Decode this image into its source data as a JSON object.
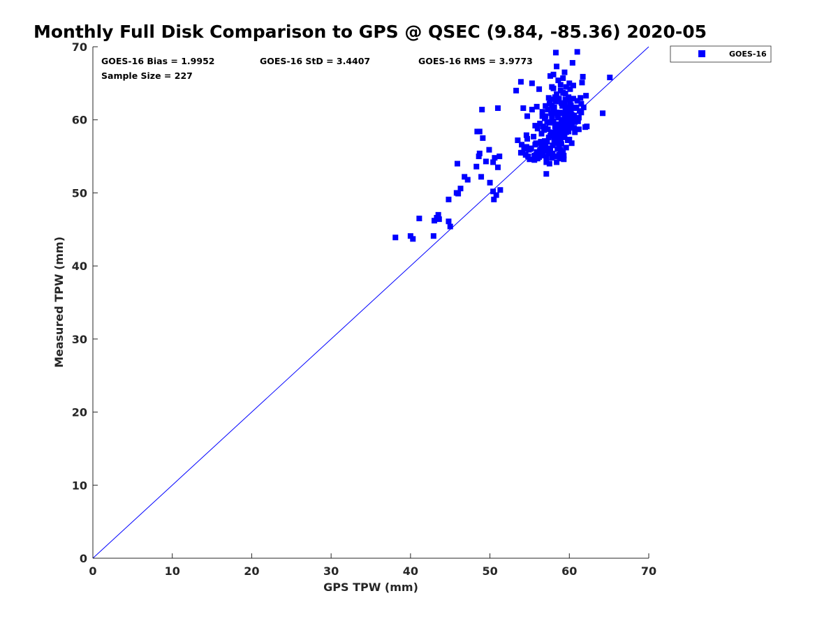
{
  "chart_data": {
    "type": "scatter",
    "title": "Monthly Full Disk Comparison to GPS @ QSEC (9.84, -85.36) 2020-05",
    "xlabel": "GPS TPW (mm)",
    "ylabel": "Measured TPW (mm)",
    "xlim": [
      0,
      70
    ],
    "ylim": [
      0,
      70
    ],
    "xticks": [
      "0",
      "10",
      "20",
      "30",
      "40",
      "50",
      "60",
      "70"
    ],
    "yticks": [
      "0",
      "10",
      "20",
      "30",
      "40",
      "50",
      "60",
      "70"
    ],
    "grid": false,
    "legend": {
      "placement": "outside-top-right"
    },
    "reference_line": {
      "kind": "one-to-one",
      "from": [
        0,
        0
      ],
      "to": [
        70,
        70
      ]
    },
    "stats": {
      "bias": "GOES-16 Bias = 1.9952",
      "std": "GOES-16 StD = 3.4407",
      "rms": "GOES-16 RMS = 3.9773",
      "sample": "Sample Size = 227"
    },
    "series": [
      {
        "name": "GOES-16",
        "color": "#0000ff",
        "marker": "square",
        "points": [
          [
            38.1,
            43.9
          ],
          [
            40.0,
            44.1
          ],
          [
            40.3,
            43.7
          ],
          [
            41.1,
            46.5
          ],
          [
            42.9,
            44.1
          ],
          [
            43.0,
            46.2
          ],
          [
            43.3,
            46.6
          ],
          [
            43.5,
            47.0
          ],
          [
            43.6,
            46.4
          ],
          [
            44.8,
            46.1
          ],
          [
            45.0,
            45.4
          ],
          [
            44.8,
            49.1
          ],
          [
            45.8,
            50.0
          ],
          [
            45.9,
            54.0
          ],
          [
            46.0,
            49.9
          ],
          [
            46.3,
            50.6
          ],
          [
            46.8,
            52.2
          ],
          [
            47.2,
            51.8
          ],
          [
            48.3,
            53.6
          ],
          [
            48.4,
            58.4
          ],
          [
            48.7,
            58.4
          ],
          [
            48.6,
            55.0
          ],
          [
            48.7,
            55.4
          ],
          [
            48.9,
            52.2
          ],
          [
            49.0,
            61.4
          ],
          [
            49.1,
            57.5
          ],
          [
            49.5,
            54.3
          ],
          [
            49.9,
            55.9
          ],
          [
            50.0,
            51.4
          ],
          [
            50.4,
            54.2
          ],
          [
            50.4,
            50.2
          ],
          [
            50.5,
            49.1
          ],
          [
            50.6,
            54.8
          ],
          [
            50.8,
            49.7
          ],
          [
            51.0,
            61.6
          ],
          [
            51.0,
            53.5
          ],
          [
            51.2,
            55.0
          ],
          [
            51.3,
            50.4
          ],
          [
            53.3,
            64.0
          ],
          [
            53.5,
            57.2
          ],
          [
            53.9,
            65.2
          ],
          [
            54.0,
            56.6
          ],
          [
            54.1,
            55.5
          ],
          [
            54.2,
            61.6
          ],
          [
            54.6,
            56.3
          ],
          [
            54.7,
            60.5
          ],
          [
            54.7,
            57.4
          ],
          [
            54.8,
            55.0
          ],
          [
            55.0,
            54.6
          ],
          [
            55.1,
            56.0
          ],
          [
            55.3,
            65.0
          ],
          [
            55.3,
            61.4
          ],
          [
            55.6,
            55.1
          ],
          [
            55.7,
            59.2
          ],
          [
            55.9,
            55.6
          ],
          [
            55.9,
            61.8
          ],
          [
            56.0,
            54.7
          ],
          [
            56.2,
            64.2
          ],
          [
            56.3,
            55.8
          ],
          [
            56.5,
            58.1
          ],
          [
            56.6,
            60.5
          ],
          [
            56.7,
            55.1
          ],
          [
            56.8,
            58.6
          ],
          [
            56.9,
            57.1
          ],
          [
            57.0,
            56.3
          ],
          [
            57.1,
            54.2
          ],
          [
            57.1,
            52.6
          ],
          [
            57.2,
            59.7
          ],
          [
            57.3,
            61.4
          ],
          [
            57.4,
            57.6
          ],
          [
            57.4,
            55.4
          ],
          [
            57.5,
            54.0
          ],
          [
            57.6,
            66.0
          ],
          [
            57.6,
            62.8
          ],
          [
            57.7,
            58.3
          ],
          [
            57.8,
            60.2
          ],
          [
            57.9,
            56.5
          ],
          [
            58.0,
            66.2
          ],
          [
            58.0,
            64.3
          ],
          [
            58.1,
            61.7
          ],
          [
            58.2,
            59.1
          ],
          [
            58.2,
            55.0
          ],
          [
            58.3,
            69.2
          ],
          [
            58.4,
            67.3
          ],
          [
            58.4,
            63.5
          ],
          [
            58.5,
            60.6
          ],
          [
            58.6,
            57.8
          ],
          [
            58.7,
            56.4
          ],
          [
            58.7,
            55.2
          ],
          [
            58.8,
            54.7
          ],
          [
            58.9,
            64.0
          ],
          [
            59.0,
            62.3
          ],
          [
            59.1,
            59.6
          ],
          [
            59.1,
            58.0
          ],
          [
            59.2,
            55.6
          ],
          [
            59.3,
            54.6
          ],
          [
            59.4,
            66.5
          ],
          [
            59.5,
            63.6
          ],
          [
            59.5,
            61.4
          ],
          [
            59.6,
            60.2
          ],
          [
            59.7,
            58.7
          ],
          [
            59.8,
            57.2
          ],
          [
            60.0,
            60.3
          ],
          [
            60.1,
            64.2
          ],
          [
            60.2,
            62.0
          ],
          [
            60.3,
            59.3
          ],
          [
            60.4,
            67.8
          ],
          [
            60.5,
            64.7
          ],
          [
            60.6,
            60.6
          ],
          [
            60.7,
            58.3
          ],
          [
            60.8,
            60.0
          ],
          [
            61.0,
            69.3
          ],
          [
            61.2,
            58.7
          ],
          [
            61.3,
            61.2
          ],
          [
            61.5,
            62.2
          ],
          [
            61.6,
            65.1
          ],
          [
            61.7,
            65.9
          ],
          [
            62.0,
            59.0
          ],
          [
            62.1,
            63.3
          ],
          [
            62.2,
            59.1
          ],
          [
            64.2,
            60.9
          ],
          [
            65.1,
            65.8
          ],
          [
            56.1,
            55.3
          ],
          [
            56.4,
            57.0
          ],
          [
            56.5,
            56.6
          ],
          [
            56.8,
            55.8
          ],
          [
            57.0,
            58.9
          ],
          [
            57.2,
            57.0
          ],
          [
            57.3,
            58.7
          ],
          [
            57.5,
            59.6
          ],
          [
            57.6,
            56.1
          ],
          [
            57.7,
            60.9
          ],
          [
            57.8,
            62.0
          ],
          [
            57.9,
            58.1
          ],
          [
            58.0,
            59.8
          ],
          [
            58.1,
            57.2
          ],
          [
            58.2,
            60.9
          ],
          [
            58.3,
            62.5
          ],
          [
            58.3,
            58.4
          ],
          [
            58.4,
            61.0
          ],
          [
            58.5,
            56.9
          ],
          [
            58.6,
            59.4
          ],
          [
            58.7,
            62.9
          ],
          [
            58.8,
            61.0
          ],
          [
            58.9,
            57.3
          ],
          [
            59.0,
            60.0
          ],
          [
            59.1,
            61.9
          ],
          [
            59.2,
            63.7
          ],
          [
            59.3,
            59.0
          ],
          [
            59.4,
            57.6
          ],
          [
            59.5,
            62.8
          ],
          [
            59.6,
            58.3
          ],
          [
            59.7,
            61.0
          ],
          [
            59.8,
            59.9
          ],
          [
            59.9,
            63.1
          ],
          [
            60.1,
            58.9
          ],
          [
            60.2,
            61.3
          ],
          [
            60.4,
            59.8
          ],
          [
            60.5,
            62.9
          ],
          [
            60.7,
            59.7
          ],
          [
            60.9,
            61.7
          ],
          [
            61.1,
            59.8
          ],
          [
            61.4,
            63.0
          ],
          [
            61.8,
            61.7
          ],
          [
            55.2,
            56.1
          ],
          [
            55.5,
            57.7
          ],
          [
            55.8,
            56.8
          ],
          [
            56.0,
            58.8
          ],
          [
            56.3,
            59.5
          ],
          [
            56.6,
            61.1
          ],
          [
            56.9,
            60.2
          ],
          [
            57.0,
            61.9
          ],
          [
            57.4,
            63.0
          ],
          [
            57.8,
            64.5
          ],
          [
            58.2,
            63.1
          ],
          [
            58.6,
            65.4
          ],
          [
            58.9,
            64.8
          ],
          [
            59.2,
            65.7
          ],
          [
            59.6,
            64.5
          ],
          [
            60.0,
            65.0
          ],
          [
            57.3,
            55.8
          ],
          [
            57.8,
            54.8
          ],
          [
            58.4,
            54.2
          ],
          [
            58.9,
            55.9
          ],
          [
            59.3,
            55.1
          ],
          [
            59.6,
            56.2
          ],
          [
            60.0,
            57.3
          ],
          [
            60.3,
            56.8
          ],
          [
            58.5,
            56.0
          ],
          [
            57.9,
            55.4
          ],
          [
            57.1,
            54.9
          ],
          [
            56.2,
            54.9
          ],
          [
            55.6,
            54.5
          ],
          [
            54.9,
            55.9
          ],
          [
            54.5,
            55.2
          ],
          [
            54.3,
            56.0
          ],
          [
            53.9,
            55.5
          ],
          [
            58.0,
            61.3
          ],
          [
            58.6,
            60.3
          ],
          [
            59.0,
            58.5
          ],
          [
            59.4,
            60.5
          ],
          [
            59.8,
            61.7
          ],
          [
            60.3,
            60.7
          ],
          [
            60.6,
            61.6
          ],
          [
            61.0,
            62.6
          ],
          [
            61.5,
            61.0
          ],
          [
            56.7,
            59.1
          ],
          [
            57.0,
            60.5
          ],
          [
            57.5,
            62.2
          ],
          [
            58.2,
            58.1
          ],
          [
            58.7,
            59.1
          ],
          [
            59.2,
            60.9
          ],
          [
            59.7,
            59.4
          ],
          [
            60.2,
            60.0
          ],
          [
            57.6,
            57.8
          ],
          [
            58.3,
            57.5
          ],
          [
            58.8,
            58.3
          ],
          [
            59.4,
            62.1
          ],
          [
            60.1,
            62.4
          ],
          [
            56.4,
            56.0
          ],
          [
            55.7,
            56.6
          ],
          [
            54.6,
            57.9
          ],
          [
            58.1,
            56.8
          ],
          [
            59.0,
            56.7
          ],
          [
            59.9,
            58.4
          ],
          [
            60.6,
            58.9
          ],
          [
            61.2,
            60.3
          ]
        ]
      }
    ]
  }
}
